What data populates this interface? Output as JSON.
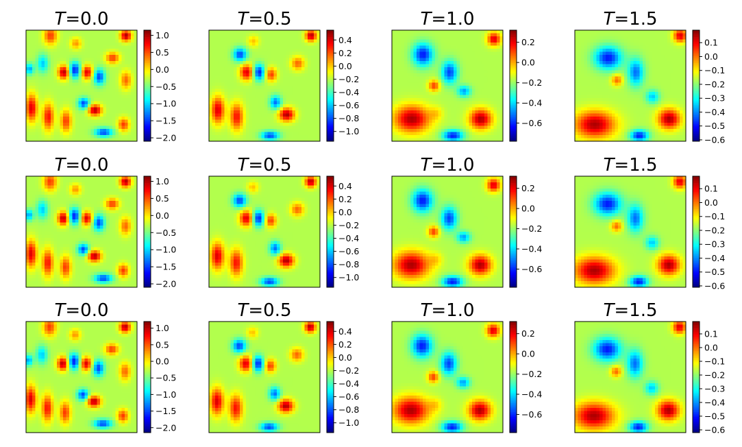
{
  "chart_data": {
    "type": "heatmap",
    "colormap": "jet",
    "rows": 3,
    "cols": 4,
    "grid": false,
    "axes_ticks": false,
    "panels": [
      {
        "row": 0,
        "col": 0,
        "title_var": "T",
        "title_eq": "=",
        "title_val": "0.0",
        "vmin": -2.1,
        "vmax": 1.15,
        "ticks": [
          "1.0",
          "0.5",
          "0.0",
          "−0.5",
          "−1.0",
          "−1.5",
          "−2.0"
        ],
        "tick_values": [
          1.0,
          0.5,
          0.0,
          -0.5,
          -1.0,
          -1.5,
          -2.0
        ]
      },
      {
        "row": 0,
        "col": 1,
        "title_var": "T",
        "title_eq": "=",
        "title_val": "0.5",
        "vmin": -1.15,
        "vmax": 0.55,
        "ticks": [
          "0.4",
          "0.2",
          "0.0",
          "−0.2",
          "−0.4",
          "−0.6",
          "−0.8",
          "−1.0"
        ],
        "tick_values": [
          0.4,
          0.2,
          0.0,
          -0.2,
          -0.4,
          -0.6,
          -0.8,
          -1.0
        ]
      },
      {
        "row": 0,
        "col": 2,
        "title_var": "T",
        "title_eq": "=",
        "title_val": "1.0",
        "vmin": -0.78,
        "vmax": 0.32,
        "ticks": [
          "0.2",
          "0.0",
          "−0.2",
          "−0.4",
          "−0.6"
        ],
        "tick_values": [
          0.2,
          0.0,
          -0.2,
          -0.4,
          -0.6
        ]
      },
      {
        "row": 0,
        "col": 3,
        "title_var": "T",
        "title_eq": "=",
        "title_val": "1.5",
        "vmin": -0.61,
        "vmax": 0.19,
        "ticks": [
          "0.1",
          "0.0",
          "−0.1",
          "−0.2",
          "−0.3",
          "−0.4",
          "−0.5",
          "−0.6"
        ],
        "tick_values": [
          0.1,
          0.0,
          -0.1,
          -0.2,
          -0.3,
          -0.4,
          -0.5,
          -0.6
        ]
      },
      {
        "row": 1,
        "col": 0,
        "title_var": "T",
        "title_eq": "=",
        "title_val": "0.0",
        "vmin": -2.1,
        "vmax": 1.15,
        "ticks": [
          "1.0",
          "0.5",
          "0.0",
          "−0.5",
          "−1.0",
          "−1.5",
          "−2.0"
        ],
        "tick_values": [
          1.0,
          0.5,
          0.0,
          -0.5,
          -1.0,
          -1.5,
          -2.0
        ]
      },
      {
        "row": 1,
        "col": 1,
        "title_var": "T",
        "title_eq": "=",
        "title_val": "0.5",
        "vmin": -1.15,
        "vmax": 0.55,
        "ticks": [
          "0.4",
          "0.2",
          "0.0",
          "−0.2",
          "−0.4",
          "−0.6",
          "−0.8",
          "−1.0"
        ],
        "tick_values": [
          0.4,
          0.2,
          0.0,
          -0.2,
          -0.4,
          -0.6,
          -0.8,
          -1.0
        ]
      },
      {
        "row": 1,
        "col": 2,
        "title_var": "T",
        "title_eq": "=",
        "title_val": "1.0",
        "vmin": -0.78,
        "vmax": 0.32,
        "ticks": [
          "0.2",
          "0.0",
          "−0.2",
          "−0.4",
          "−0.6"
        ],
        "tick_values": [
          0.2,
          0.0,
          -0.2,
          -0.4,
          -0.6
        ]
      },
      {
        "row": 1,
        "col": 3,
        "title_var": "T",
        "title_eq": "=",
        "title_val": "1.5",
        "vmin": -0.61,
        "vmax": 0.19,
        "ticks": [
          "0.1",
          "0.0",
          "−0.1",
          "−0.2",
          "−0.3",
          "−0.4",
          "−0.5",
          "−0.6"
        ],
        "tick_values": [
          0.1,
          0.0,
          -0.1,
          -0.2,
          -0.3,
          -0.4,
          -0.5,
          -0.6
        ]
      },
      {
        "row": 2,
        "col": 0,
        "title_var": "T",
        "title_eq": "=",
        "title_val": "0.0",
        "vmin": -2.15,
        "vmax": 1.2,
        "ticks": [
          "1.0",
          "0.5",
          "0.0",
          "−0.5",
          "−1.0",
          "−1.5",
          "−2.0"
        ],
        "tick_values": [
          1.0,
          0.5,
          0.0,
          -0.5,
          -1.0,
          -1.5,
          -2.0
        ]
      },
      {
        "row": 2,
        "col": 1,
        "title_var": "T",
        "title_eq": "=",
        "title_val": "0.5",
        "vmin": -1.15,
        "vmax": 0.55,
        "ticks": [
          "0.4",
          "0.2",
          "0.0",
          "−0.2",
          "−0.4",
          "−0.6",
          "−0.8",
          "−1.0"
        ],
        "tick_values": [
          0.4,
          0.2,
          0.0,
          -0.2,
          -0.4,
          -0.6,
          -0.8,
          -1.0
        ]
      },
      {
        "row": 2,
        "col": 2,
        "title_var": "T",
        "title_eq": "=",
        "title_val": "1.0",
        "vmin": -0.78,
        "vmax": 0.32,
        "ticks": [
          "0.2",
          "0.0",
          "−0.2",
          "−0.4",
          "−0.6"
        ],
        "tick_values": [
          0.2,
          0.0,
          -0.2,
          -0.4,
          -0.6
        ]
      },
      {
        "row": 2,
        "col": 3,
        "title_var": "T",
        "title_eq": "=",
        "title_val": "1.5",
        "vmin": -0.62,
        "vmax": 0.19,
        "ticks": [
          "0.1",
          "0.0",
          "−0.1",
          "−0.2",
          "−0.3",
          "−0.4",
          "−0.5",
          "−0.6"
        ],
        "tick_values": [
          0.1,
          0.0,
          -0.1,
          -0.2,
          -0.3,
          -0.4,
          -0.5,
          -0.6
        ]
      }
    ]
  }
}
